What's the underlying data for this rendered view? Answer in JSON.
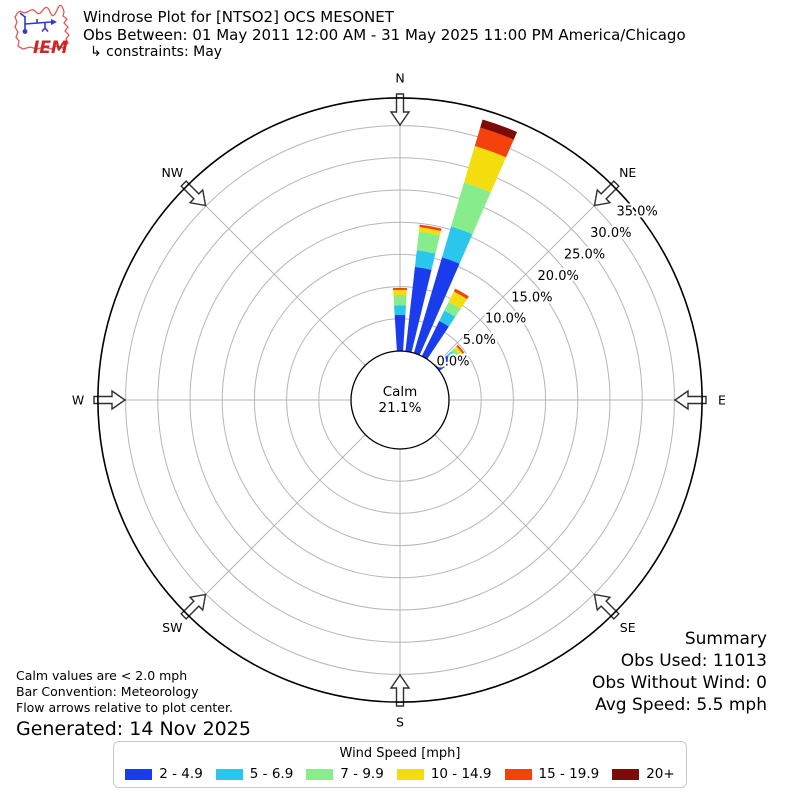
{
  "header": {
    "logo": "IEM",
    "title": "Windrose Plot for [NTSO2] OCS MESONET",
    "obs_between": "Obs Between: 01 May 2011 12:00 AM - 31 May 2025 11:00 PM America/Chicago",
    "constraints": "↳ constraints: May"
  },
  "chart_data": {
    "type": "windrose",
    "units": "mph",
    "calm_label": "Calm",
    "calm_value": "21.1%",
    "ring_ticks_pct": [
      0,
      5,
      10,
      15,
      20,
      25,
      30,
      35
    ],
    "ring_tick_labels": [
      "0.0%",
      "5.0%",
      "10.0%",
      "15.0%",
      "20.0%",
      "25.0%",
      "30.0%",
      "35.0%"
    ],
    "axis_max_pct": 39.3,
    "grid_on": true,
    "bar_width_deg": 7.2,
    "compass": [
      {
        "label": "N",
        "azimuth": 0
      },
      {
        "label": "NE",
        "azimuth": 45
      },
      {
        "label": "E",
        "azimuth": 90
      },
      {
        "label": "SE",
        "azimuth": 135
      },
      {
        "label": "S",
        "azimuth": 180
      },
      {
        "label": "SW",
        "azimuth": 225
      },
      {
        "label": "W",
        "azimuth": 270
      },
      {
        "label": "NW",
        "azimuth": 315
      }
    ],
    "speed_bins": [
      {
        "label": "2 - 4.9",
        "color": "#1a3cec"
      },
      {
        "label": "5 - 6.9",
        "color": "#2bc6ec"
      },
      {
        "label": "7 - 9.9",
        "color": "#87ec8b"
      },
      {
        "label": "10 - 14.9",
        "color": "#f4dd0c"
      },
      {
        "label": "15 - 19.9",
        "color": "#f4420c"
      },
      {
        "label": "20+",
        "color": "#7d0b08"
      }
    ],
    "directions_pct": [
      {
        "azimuth": 0,
        "values": [
          5.6,
          1.5,
          1.6,
          0.8,
          0.3,
          0
        ]
      },
      {
        "azimuth": 10,
        "values": [
          13.2,
          2.6,
          2.9,
          0.7,
          0.4,
          0
        ]
      },
      {
        "azimuth": 20,
        "values": [
          15.5,
          5.0,
          7.1,
          5.9,
          3.0,
          1.3
        ]
      },
      {
        "azimuth": 30,
        "values": [
          6.1,
          1.8,
          1.5,
          1.8,
          0.5,
          0
        ]
      },
      {
        "azimuth": 50,
        "values": [
          2.4,
          1.0,
          0.6,
          0.5,
          0.3,
          0
        ]
      }
    ]
  },
  "notes": {
    "calm": "Calm values are < 2.0 mph",
    "convention": "Bar Convention: Meteorology",
    "arrows": "Flow arrows relative to plot center.",
    "generated": "Generated: 14 Nov 2025"
  },
  "summary": {
    "title": "Summary",
    "obs_used": "Obs Used: 11013",
    "obs_without_wind": "Obs Without Wind: 0",
    "avg_speed": "Avg Speed: 5.5 mph"
  },
  "legend": {
    "title": "Wind Speed [mph]"
  }
}
